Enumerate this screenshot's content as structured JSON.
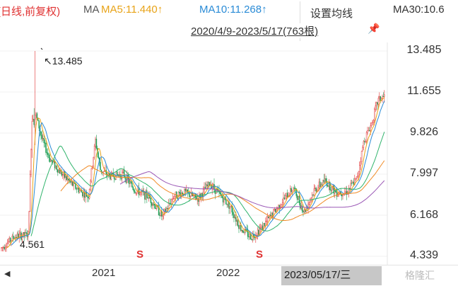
{
  "header": {
    "kline_label": "(日线,前复权)",
    "ma_label": "MA",
    "ma5": "MA5:11.440↑",
    "ma10": "MA10:11.268↑",
    "ma30": "MA30:10.6"
  },
  "popup": {
    "title": "设置均线",
    "range": "2020/4/9-2023/5/17(763根)"
  },
  "y_axis": [
    "13.485",
    "11.655",
    "9.826",
    "7.997",
    "6.168",
    "4.339"
  ],
  "x_axis": [
    "2021",
    "2022"
  ],
  "crosshair_date": "2023/05/17/三",
  "annotations": {
    "high": "13.485",
    "low": "4.561"
  },
  "watermark": "格隆汇",
  "markers": {
    "s1": "S",
    "s2": "S"
  },
  "colors": {
    "up": "#e03131",
    "down": "#1f9d55",
    "ma5": "#e8a317",
    "ma10": "#2a8bd6",
    "ma30": "#9b59b6",
    "ma60": "#f08a24"
  },
  "chart_data": {
    "type": "candlestick",
    "ylim": [
      4.2,
      13.9
    ],
    "series_summary": {
      "start": "2020/4/9",
      "end": "2023/5/17",
      "count": 763,
      "max": 13.485,
      "min": 4.561
    }
  }
}
